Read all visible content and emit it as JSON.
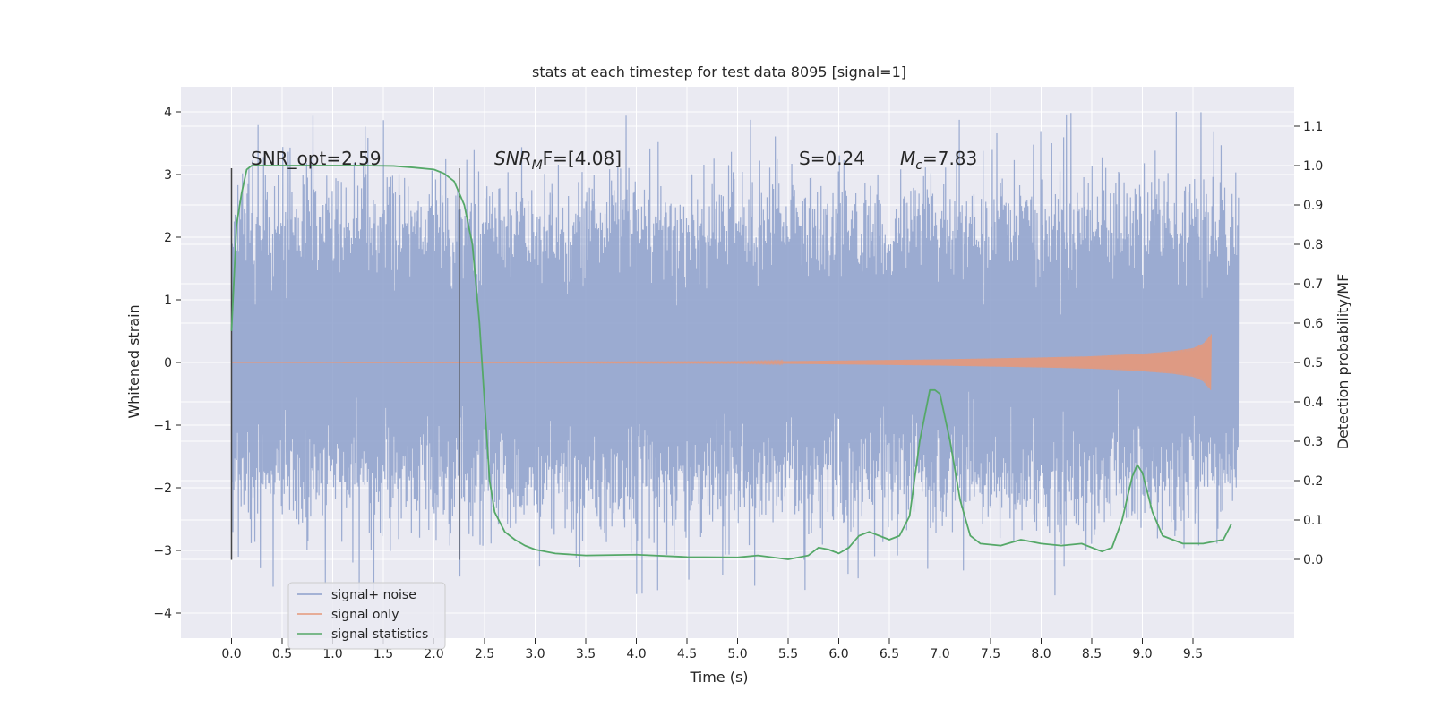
{
  "chart_data": {
    "type": "line",
    "title": "stats at each timestep for test data 8095 [signal=1]",
    "xlabel": "Time (s)",
    "ylabel": "Whitened strain",
    "ylabel_right": "Detection probability/MF",
    "xlim": [
      -0.5,
      10.5
    ],
    "ylim_left": [
      -4.4,
      4.4
    ],
    "ylim_right": [
      -0.2,
      1.2
    ],
    "x_ticks": [
      "0.0",
      "0.5",
      "1.0",
      "1.5",
      "2.0",
      "2.5",
      "3.0",
      "3.5",
      "4.0",
      "4.5",
      "5.0",
      "5.5",
      "6.0",
      "6.5",
      "7.0",
      "7.5",
      "8.0",
      "8.5",
      "9.0",
      "9.5"
    ],
    "y_ticks_left": [
      "4",
      "3",
      "2",
      "1",
      "0",
      "−1",
      "−2",
      "−3",
      "−4"
    ],
    "y_ticks_right": [
      "1.1",
      "1.0",
      "0.9",
      "0.8",
      "0.7",
      "0.6",
      "0.5",
      "0.4",
      "0.3",
      "0.2",
      "0.1",
      "0.0"
    ],
    "grid": true,
    "legend_position": "lower-left",
    "colors": {
      "background": "#eaeaf2",
      "grid": "#ffffff",
      "signal_noise": "#8da0cb",
      "signal_only": "#e5987a",
      "statistics": "#55a868",
      "marker": "#444444"
    },
    "annotations": {
      "snr_opt": "SNR_opt=2.59",
      "snr_mf_main": "SNR",
      "snr_mf_sub": "M",
      "snr_mf_rest": "F=[4.08]",
      "spin": "S=0.24",
      "mc_main": "M",
      "mc_sub": "c",
      "mc_rest": "=7.83"
    },
    "markers_x": [
      0.0,
      2.25
    ],
    "series": [
      {
        "name": "signal+ noise",
        "kind": "noise",
        "x_range": [
          0.0,
          9.95
        ],
        "typical_envelope": [
          -2.2,
          2.5
        ],
        "y_range_observed": [
          -3.9,
          4.0
        ]
      },
      {
        "name": "signal only",
        "kind": "chirp",
        "x_range": [
          0.0,
          9.68
        ],
        "envelope_x": [
          0.0,
          5.0,
          6.0,
          7.0,
          8.0,
          8.5,
          9.0,
          9.3,
          9.5,
          9.6,
          9.68
        ],
        "envelope_amp": [
          0.0,
          0.01,
          0.03,
          0.05,
          0.08,
          0.1,
          0.14,
          0.18,
          0.23,
          0.3,
          0.45
        ]
      },
      {
        "name": "signal statistics",
        "kind": "line",
        "axis": "right",
        "x": [
          0.0,
          0.05,
          0.1,
          0.15,
          0.2,
          0.3,
          0.5,
          0.8,
          1.0,
          1.3,
          1.6,
          1.8,
          2.0,
          2.1,
          2.2,
          2.3,
          2.38,
          2.45,
          2.5,
          2.55,
          2.6,
          2.7,
          2.8,
          2.9,
          3.0,
          3.2,
          3.5,
          4.0,
          4.5,
          5.0,
          5.2,
          5.5,
          5.7,
          5.8,
          5.9,
          6.0,
          6.1,
          6.2,
          6.3,
          6.4,
          6.5,
          6.6,
          6.7,
          6.8,
          6.9,
          6.95,
          7.0,
          7.1,
          7.2,
          7.3,
          7.4,
          7.6,
          7.8,
          8.0,
          8.2,
          8.4,
          8.6,
          8.7,
          8.8,
          8.9,
          8.95,
          9.0,
          9.1,
          9.2,
          9.4,
          9.6,
          9.8,
          9.88
        ],
        "values": [
          0.58,
          0.85,
          0.93,
          0.99,
          1.0,
          1.0,
          1.0,
          1.0,
          1.0,
          1.0,
          0.999,
          0.995,
          0.99,
          0.98,
          0.96,
          0.9,
          0.8,
          0.6,
          0.4,
          0.2,
          0.12,
          0.07,
          0.05,
          0.035,
          0.025,
          0.015,
          0.01,
          0.012,
          0.006,
          0.005,
          0.01,
          0.0,
          0.01,
          0.03,
          0.025,
          0.015,
          0.03,
          0.06,
          0.07,
          0.06,
          0.05,
          0.06,
          0.11,
          0.3,
          0.43,
          0.43,
          0.42,
          0.3,
          0.15,
          0.06,
          0.04,
          0.035,
          0.05,
          0.04,
          0.035,
          0.04,
          0.02,
          0.03,
          0.1,
          0.21,
          0.24,
          0.22,
          0.12,
          0.06,
          0.04,
          0.04,
          0.05,
          0.09
        ]
      }
    ]
  }
}
